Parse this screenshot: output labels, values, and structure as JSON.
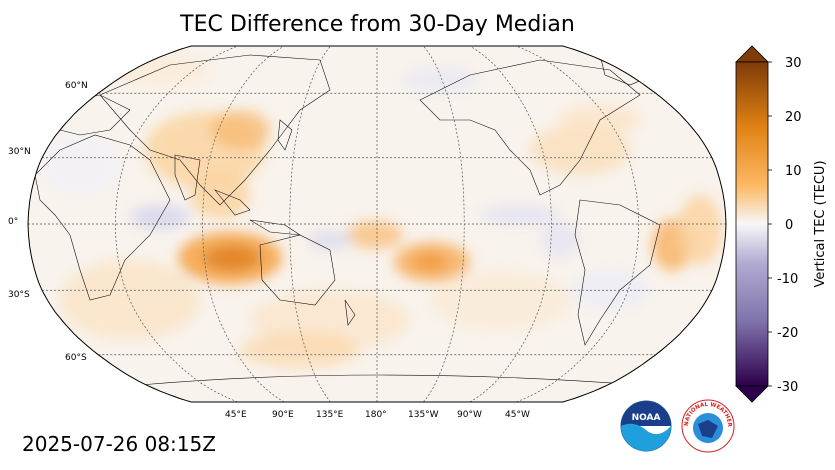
{
  "title": "TEC Difference from 30-Day Median",
  "timestamp": "2025-07-26 08:15Z",
  "map": {
    "projection": "robinson",
    "central_longitude": 180,
    "lat_labels": [
      "60°N",
      "30°N",
      "0°",
      "30°S",
      "60°S"
    ],
    "lon_labels": [
      "45°E",
      "90°E",
      "135°E",
      "180°",
      "135°W",
      "90°W",
      "45°W"
    ],
    "anomaly_regions": [
      {
        "feature": "Indian Ocean SE / W Australia",
        "sign": "positive",
        "value": 22
      },
      {
        "feature": "South Pacific near 150°W",
        "sign": "positive",
        "value": 15
      },
      {
        "feature": "Equatorial Pacific near 180°",
        "sign": "positive",
        "value": 9
      },
      {
        "feature": "China / East Asia",
        "sign": "positive",
        "value": 10
      },
      {
        "feature": "South America east coast",
        "sign": "positive",
        "value": 10
      },
      {
        "feature": "Indian Ocean equatorial",
        "sign": "negative",
        "value": -4
      },
      {
        "feature": "Central Pacific equatorial",
        "sign": "negative",
        "value": -3
      }
    ]
  },
  "colorbar": {
    "label": "Vertical TEC (TECU)",
    "ticks": [
      "30",
      "20",
      "10",
      "0",
      "-10",
      "-20",
      "-30"
    ],
    "vmin": -30,
    "vmax": 30,
    "colors": {
      "max": "#7f3b08",
      "high": "#e08214",
      "mid_high": "#fdb863",
      "zero": "#f7f7f7",
      "mid_low": "#b2abd2",
      "low": "#8073ac",
      "min": "#2d004b"
    }
  },
  "logos": {
    "noaa": "NOAA",
    "nws": "NATIONAL WEATHER SERVICE"
  }
}
